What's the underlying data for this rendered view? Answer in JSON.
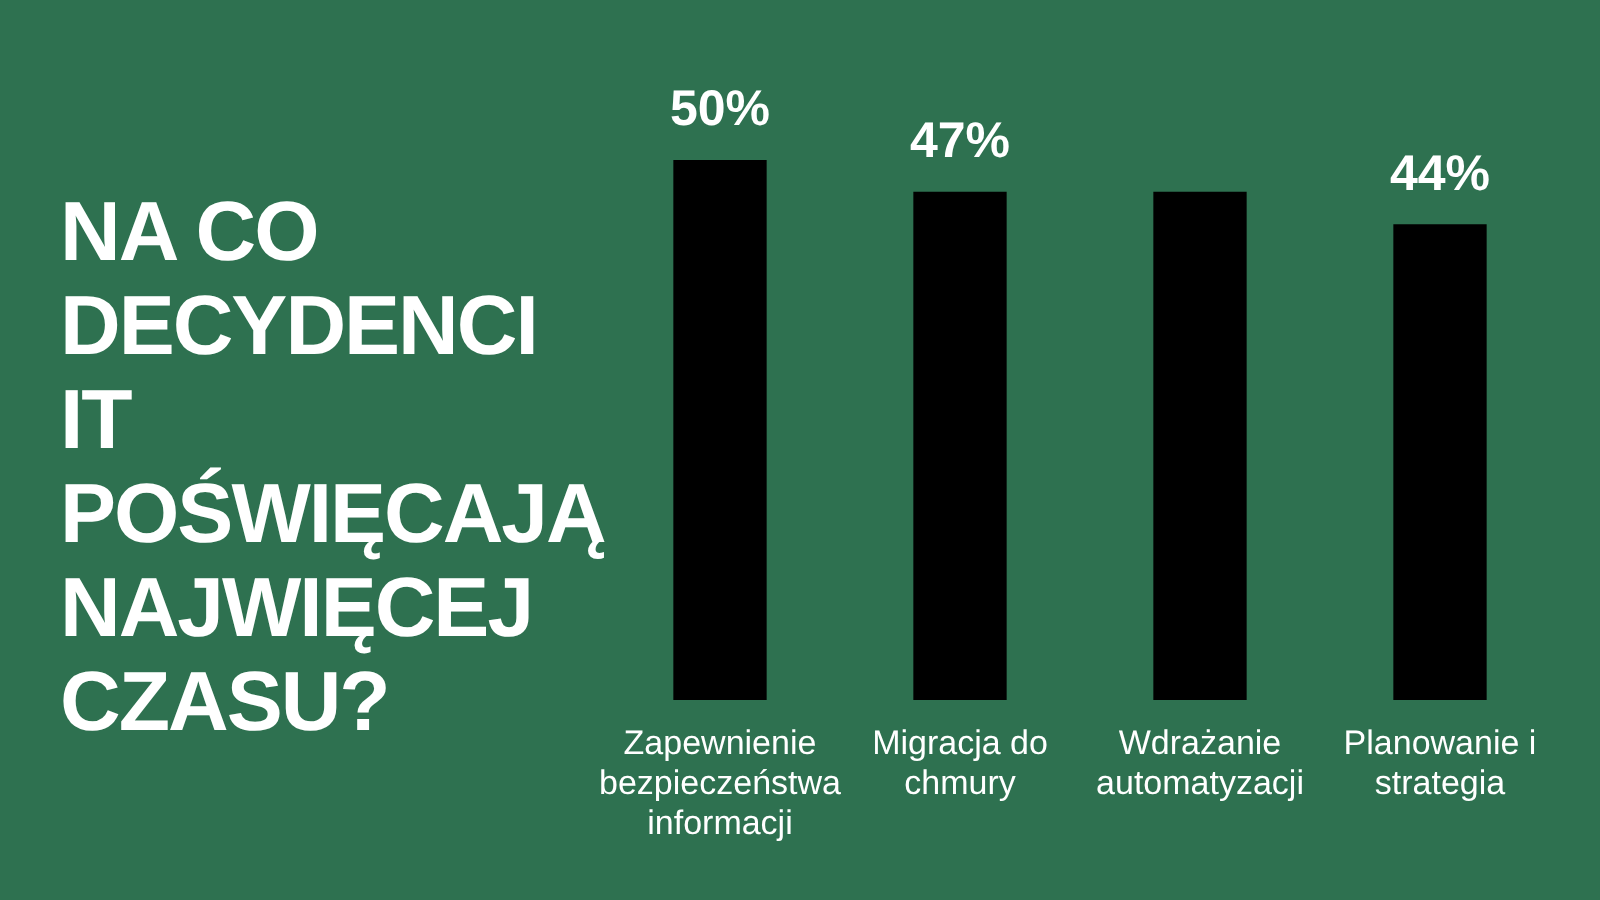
{
  "chart_data": {
    "type": "bar",
    "title": "NA CO DECYDENCI IT POŚWIĘCAJĄ NAJWIĘCEJ CZASU?",
    "categories": [
      "Zapewnienie bezpieczeństwa informacji",
      "Migracja do chmury",
      "Wdrażanie automatyzacji",
      "Planowanie i strategia"
    ],
    "values": [
      50,
      47,
      47,
      44
    ],
    "value_labels": [
      "50%",
      "47%",
      null,
      "44%"
    ],
    "color": "#000000",
    "legend": false,
    "grid": false
  }
}
